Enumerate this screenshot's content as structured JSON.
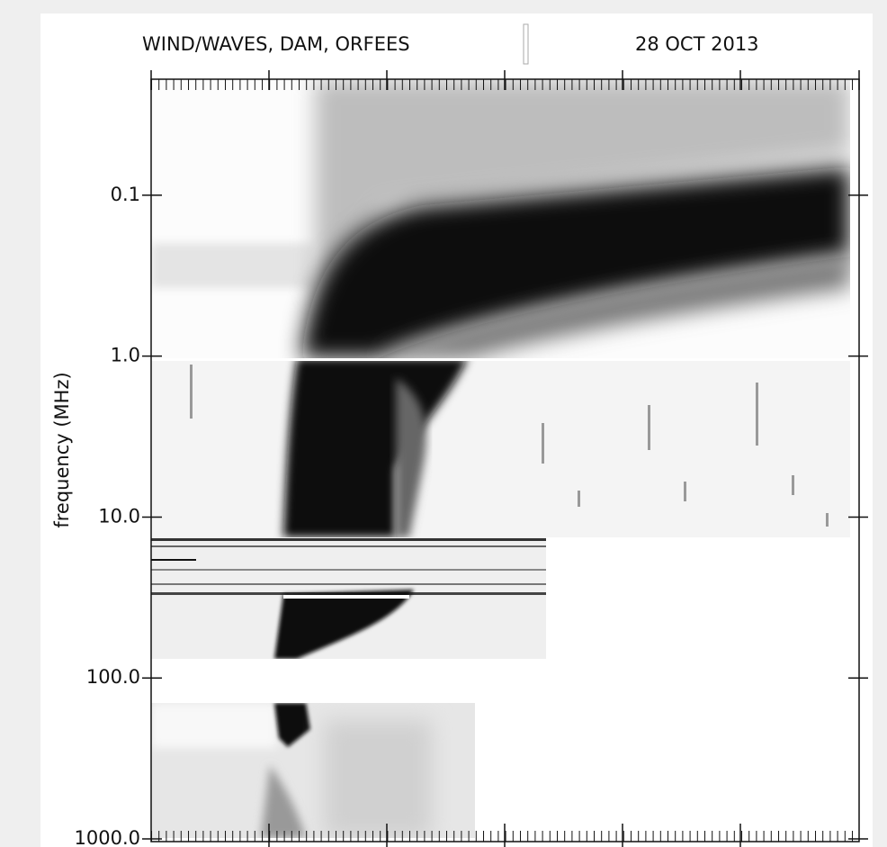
{
  "chart_data": {
    "type": "spectrogram",
    "title": "WIND/WAVES, DAM, ORFEES",
    "subtitle": "28 OCT 2013",
    "ylabel": "frequency (MHz)",
    "ylog": true,
    "yinverted": true,
    "ylim": [
      0.019,
      1040
    ],
    "yticks": [
      0.1,
      {
        "value": 1,
        "label": "1.0"
      },
      {
        "value": 10,
        "label": "10.0"
      },
      {
        "value": 100,
        "label": "100.0"
      },
      {
        "value": 1000,
        "label": "1000.0"
      }
    ]
  }
}
